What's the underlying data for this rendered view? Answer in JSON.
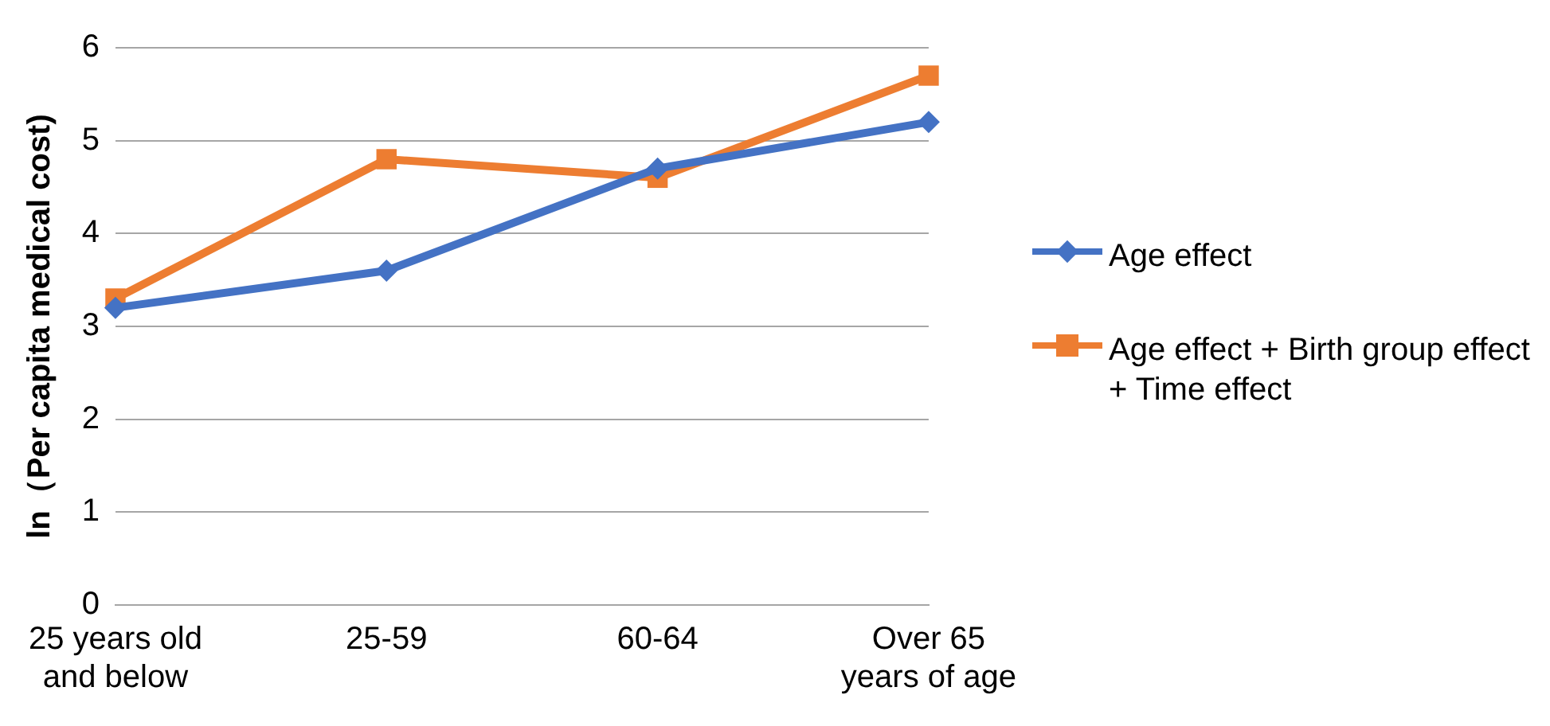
{
  "chart_data": {
    "type": "line",
    "ylabel": "ln（Per capita medical cost)",
    "categories": [
      "25 years old and below",
      "25-59",
      "60-64",
      "Over 65 years of age"
    ],
    "series": [
      {
        "name": "Age effect",
        "color": "#4472c4",
        "marker": "diamond",
        "values": [
          3.2,
          3.6,
          4.7,
          5.2
        ]
      },
      {
        "name": "Age effect + Birth group effect + Time effect",
        "color": "#ed7d31",
        "marker": "square",
        "values": [
          3.3,
          4.8,
          4.6,
          5.7
        ]
      }
    ],
    "ylim": [
      0,
      6
    ],
    "yticks": [
      0,
      1,
      2,
      3,
      4,
      5,
      6
    ],
    "grid": "y",
    "legend": "right"
  }
}
